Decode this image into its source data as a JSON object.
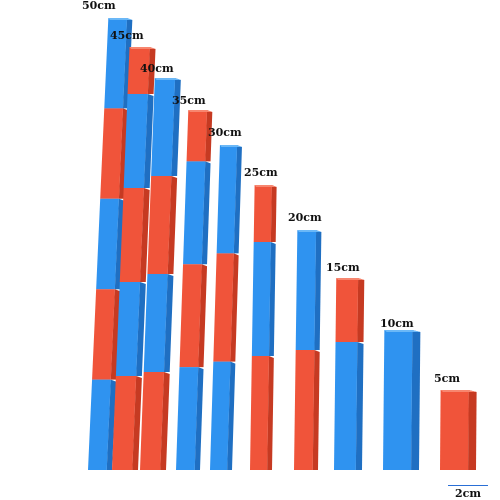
{
  "image": {
    "subject": "number rods",
    "colors": {
      "background": "#ffffff",
      "red": "#f0543a",
      "red_shade": "#c63a22",
      "blue": "#2f93f0",
      "blue_shade": "#1f6fc2",
      "label": "#111111",
      "scale_line": "#2a6fd6"
    },
    "rods": [
      {
        "label": "50cm",
        "segments": 5,
        "top_color": "blue"
      },
      {
        "label": "45cm",
        "segments": 4.5,
        "top_color": "red"
      },
      {
        "label": "40cm",
        "segments": 4,
        "top_color": "blue"
      },
      {
        "label": "35cm",
        "segments": 3.5,
        "top_color": "red"
      },
      {
        "label": "30cm",
        "segments": 3,
        "top_color": "blue"
      },
      {
        "label": "25cm",
        "segments": 2.5,
        "top_color": "red"
      },
      {
        "label": "20cm",
        "segments": 2,
        "top_color": "blue"
      },
      {
        "label": "15cm",
        "segments": 1.5,
        "top_color": "red"
      },
      {
        "label": "10cm",
        "segments": 1,
        "top_color": "blue"
      },
      {
        "label": "5cm",
        "segments": 0.5,
        "top_color": "red"
      }
    ],
    "scale_label": "2cm"
  }
}
